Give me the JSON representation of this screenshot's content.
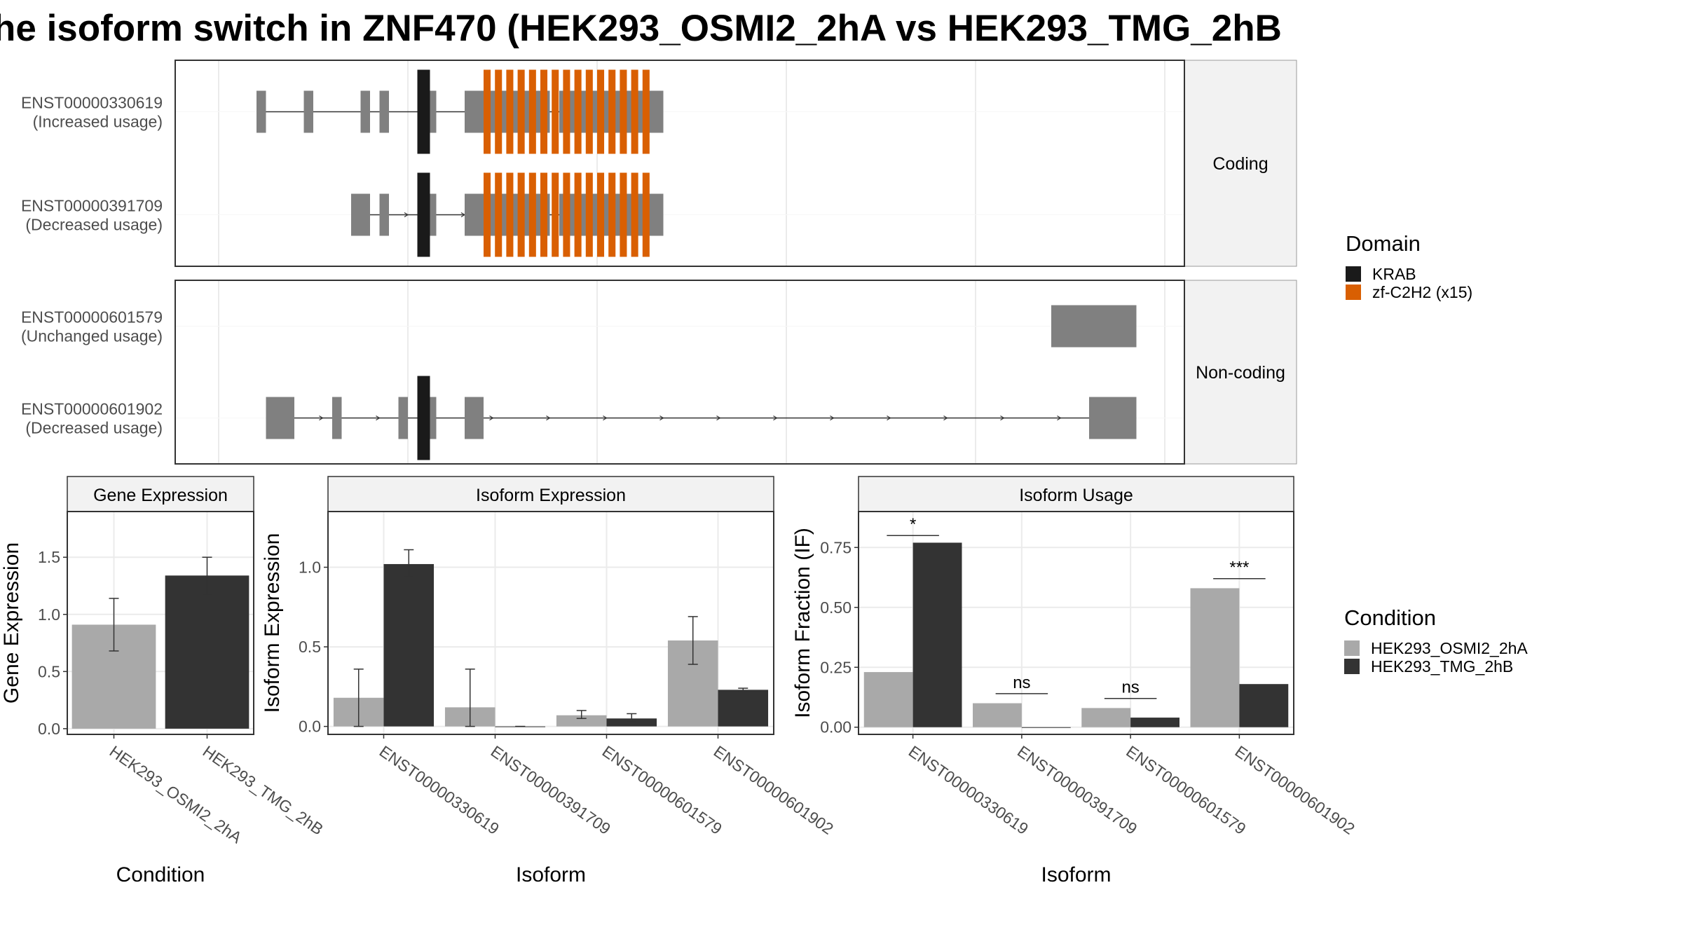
{
  "title": "he isoform switch in ZNF470 (HEK293_OSMI2_2hA vs HEK293_TMG_2hB",
  "colors": {
    "exon": "#808080",
    "krab": "#1a1a1a",
    "zf": "#d95f02",
    "cond_a": "#a9a9a9",
    "cond_b": "#333333",
    "strip": "#f2f2f2"
  },
  "structure": {
    "domain_legend": {
      "title": "Domain",
      "items": [
        {
          "label": "KRAB",
          "color": "#1a1a1a"
        },
        {
          "label": "zf-C2H2 (x15)",
          "color": "#d95f02"
        }
      ]
    },
    "panels": [
      {
        "strip": "Coding",
        "transcripts": [
          {
            "id": "ENST00000330619",
            "usage": "(Increased usage)",
            "exons": [
              [
                0.04,
                0.05
              ],
              [
                0.09,
                0.1
              ],
              [
                0.15,
                0.16
              ],
              [
                0.17,
                0.18
              ],
              [
                0.21,
                0.23
              ],
              [
                0.26,
                0.35
              ],
              [
                0.36,
                0.47
              ]
            ],
            "domains": [
              {
                "type": "krab",
                "span": [
                  0.21,
                  0.22
                ]
              },
              {
                "type": "zf",
                "span": [
                  0.28,
                  0.46
                ]
              }
            ]
          },
          {
            "id": "ENST00000391709",
            "usage": "(Decreased usage)",
            "exons": [
              [
                0.14,
                0.16
              ],
              [
                0.17,
                0.18
              ],
              [
                0.21,
                0.23
              ],
              [
                0.26,
                0.35
              ],
              [
                0.36,
                0.47
              ]
            ],
            "domains": [
              {
                "type": "krab",
                "span": [
                  0.21,
                  0.22
                ]
              },
              {
                "type": "zf",
                "span": [
                  0.28,
                  0.46
                ]
              }
            ]
          }
        ]
      },
      {
        "strip": "Non-coding",
        "transcripts": [
          {
            "id": "ENST00000601579",
            "usage": "(Unchanged usage)",
            "exons": [
              [
                0.88,
                0.97
              ]
            ],
            "domains": []
          },
          {
            "id": "ENST00000601902",
            "usage": "(Decreased usage)",
            "exons": [
              [
                0.05,
                0.08
              ],
              [
                0.12,
                0.13
              ],
              [
                0.19,
                0.2
              ],
              [
                0.21,
                0.23
              ],
              [
                0.26,
                0.28
              ],
              [
                0.92,
                0.93
              ],
              [
                0.93,
                0.97
              ]
            ],
            "domains": [
              {
                "type": "krab",
                "span": [
                  0.21,
                  0.22
                ]
              }
            ]
          }
        ]
      }
    ]
  },
  "chart_data": [
    {
      "type": "bar",
      "strip": "Gene Expression",
      "xlabel": "Condition",
      "ylabel": "Gene Expression",
      "categories": [
        "HEK293_OSMI2_2hA",
        "HEK293_TMG_2hB"
      ],
      "values": [
        0.91,
        1.34
      ],
      "errors": [
        [
          0.68,
          1.14
        ],
        [
          1.18,
          1.5
        ]
      ],
      "ylim": [
        -0.05,
        1.9
      ],
      "yticks": [
        "0.0",
        "0.5",
        "1.0",
        "1.5"
      ]
    },
    {
      "type": "bar",
      "strip": "Isoform Expression",
      "xlabel": "Isoform",
      "ylabel": "Isoform Expression",
      "categories": [
        "ENST00000330619",
        "ENST00000391709",
        "ENST00000601579",
        "ENST00000601902"
      ],
      "series": [
        {
          "name": "HEK293_OSMI2_2hA",
          "values": [
            0.18,
            0.12,
            0.07,
            0.54
          ],
          "errors": [
            [
              0.0,
              0.36
            ],
            [
              0.0,
              0.36
            ],
            [
              0.05,
              0.1
            ],
            [
              0.39,
              0.69
            ]
          ]
        },
        {
          "name": "HEK293_TMG_2hB",
          "values": [
            1.02,
            0.0,
            0.05,
            0.23
          ],
          "errors": [
            [
              0.94,
              1.11
            ],
            [
              0.0,
              0.0
            ],
            [
              0.03,
              0.08
            ],
            [
              0.22,
              0.24
            ]
          ]
        }
      ],
      "ylim": [
        -0.05,
        1.35
      ],
      "yticks": [
        "0.0",
        "0.5",
        "1.0"
      ]
    },
    {
      "type": "bar",
      "strip": "Isoform Usage",
      "xlabel": "Isoform",
      "ylabel": "Isoform Fraction (IF)",
      "categories": [
        "ENST00000330619",
        "ENST00000391709",
        "ENST00000601579",
        "ENST00000601902"
      ],
      "series": [
        {
          "name": "HEK293_OSMI2_2hA",
          "values": [
            0.23,
            0.1,
            0.08,
            0.58
          ]
        },
        {
          "name": "HEK293_TMG_2hB",
          "values": [
            0.77,
            0.0,
            0.04,
            0.18
          ]
        }
      ],
      "significance": [
        "*",
        "ns",
        "ns",
        "***"
      ],
      "sig_y": [
        0.8,
        0.14,
        0.12,
        0.62
      ],
      "ylim": [
        -0.03,
        0.9
      ],
      "yticks": [
        "0.00",
        "0.25",
        "0.50",
        "0.75"
      ]
    }
  ],
  "condition_legend": {
    "title": "Condition",
    "items": [
      {
        "label": "HEK293_OSMI2_2hA",
        "color": "#a9a9a9"
      },
      {
        "label": "HEK293_TMG_2hB",
        "color": "#333333"
      }
    ]
  }
}
